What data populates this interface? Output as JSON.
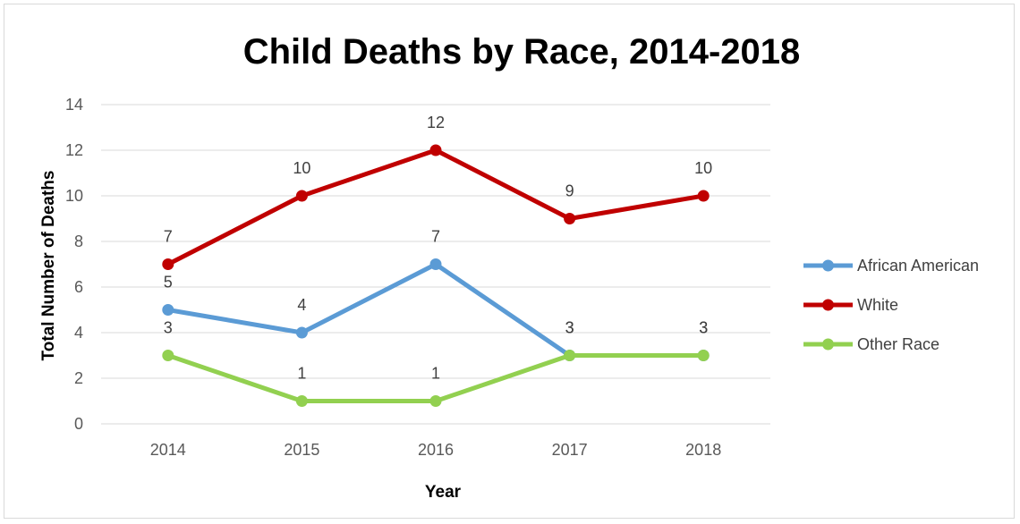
{
  "chart_data": {
    "type": "line",
    "title": "Child Deaths by Race, 2014-2018",
    "xlabel": "Year",
    "ylabel": "Total Number of Deaths",
    "categories": [
      "2014",
      "2015",
      "2016",
      "2017",
      "2018"
    ],
    "ylim": [
      0,
      14
    ],
    "yticks": [
      "0",
      "2",
      "4",
      "6",
      "8",
      "10",
      "12",
      "14"
    ],
    "grid": true,
    "legend_position": "right",
    "series": [
      {
        "name": "African American",
        "values": [
          5,
          4,
          7,
          3,
          3
        ],
        "color": "#5B9BD5",
        "labels": [
          "5",
          "4",
          "7",
          "3",
          "3"
        ]
      },
      {
        "name": "White",
        "values": [
          7,
          10,
          12,
          9,
          10
        ],
        "color": "#C00000",
        "labels": [
          "7",
          "10",
          "12",
          "9",
          "10"
        ]
      },
      {
        "name": "Other Race",
        "values": [
          3,
          1,
          1,
          3,
          3
        ],
        "color": "#92D050",
        "labels": [
          "3",
          "1",
          "1",
          "3",
          "3"
        ]
      }
    ]
  }
}
